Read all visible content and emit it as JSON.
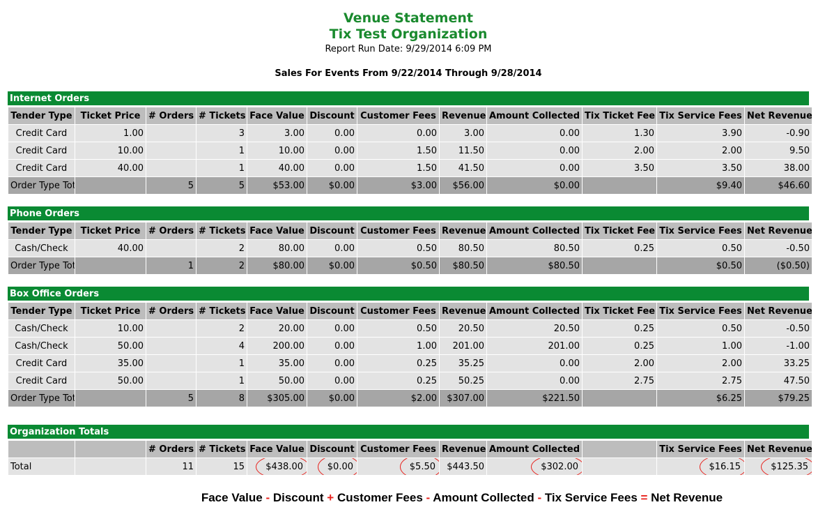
{
  "header": {
    "title": "Venue Statement",
    "organization": "Tix Test Organization",
    "run_date": "Report Run Date: 9/29/2014 6:09 PM",
    "range": "Sales For Events From 9/22/2014 Through 9/28/2014"
  },
  "columns": [
    "Tender Type",
    "Ticket Price",
    "# Orders",
    "# Tickets",
    "Face Value",
    "Discount",
    "Customer Fees",
    "Revenue",
    "Amount Collected",
    "Tix Ticket Fee",
    "Tix Service Fees",
    "Net Revenue"
  ],
  "sections": [
    {
      "title": "Internet Orders",
      "rows": [
        [
          "Credit Card",
          "1.00",
          "",
          "3",
          "3.00",
          "0.00",
          "0.00",
          "3.00",
          "0.00",
          "1.30",
          "3.90",
          "-0.90"
        ],
        [
          "Credit Card",
          "10.00",
          "",
          "1",
          "10.00",
          "0.00",
          "1.50",
          "11.50",
          "0.00",
          "2.00",
          "2.00",
          "9.50"
        ],
        [
          "Credit Card",
          "40.00",
          "",
          "1",
          "40.00",
          "0.00",
          "1.50",
          "41.50",
          "0.00",
          "3.50",
          "3.50",
          "38.00"
        ]
      ],
      "total": [
        "Order Type Total",
        "",
        "5",
        "5",
        "$53.00",
        "$0.00",
        "$3.00",
        "$56.00",
        "$0.00",
        "",
        "$9.40",
        "$46.60"
      ]
    },
    {
      "title": "Phone Orders",
      "rows": [
        [
          "Cash/Check",
          "40.00",
          "",
          "2",
          "80.00",
          "0.00",
          "0.50",
          "80.50",
          "80.50",
          "0.25",
          "0.50",
          "-0.50"
        ]
      ],
      "total": [
        "Order Type Total",
        "",
        "1",
        "2",
        "$80.00",
        "$0.00",
        "$0.50",
        "$80.50",
        "$80.50",
        "",
        "$0.50",
        "($0.50)"
      ]
    },
    {
      "title": "Box Office Orders",
      "rows": [
        [
          "Cash/Check",
          "10.00",
          "",
          "2",
          "20.00",
          "0.00",
          "0.50",
          "20.50",
          "20.50",
          "0.25",
          "0.50",
          "-0.50"
        ],
        [
          "Cash/Check",
          "50.00",
          "",
          "4",
          "200.00",
          "0.00",
          "1.00",
          "201.00",
          "201.00",
          "0.25",
          "1.00",
          "-1.00"
        ],
        [
          "Credit Card",
          "35.00",
          "",
          "1",
          "35.00",
          "0.00",
          "0.25",
          "35.25",
          "0.00",
          "2.00",
          "2.00",
          "33.25"
        ],
        [
          "Credit Card",
          "50.00",
          "",
          "1",
          "50.00",
          "0.00",
          "0.25",
          "50.25",
          "0.00",
          "2.75",
          "2.75",
          "47.50"
        ]
      ],
      "total": [
        "Order Type Total",
        "",
        "5",
        "8",
        "$305.00",
        "$0.00",
        "$2.00",
        "$307.00",
        "$221.50",
        "",
        "$6.25",
        "$79.25"
      ]
    }
  ],
  "org_totals": {
    "title": "Organization Totals",
    "columns": [
      "",
      "",
      "# Orders",
      "# Tickets",
      "Face Value",
      "Discount",
      "Customer Fees",
      "Revenue",
      "Amount Collected",
      "",
      "Tix Service Fees",
      "Net Revenue"
    ],
    "row": [
      "Total",
      "",
      "11",
      "15",
      "$438.00",
      "$0.00",
      "$5.50",
      "$443.50",
      "$302.00",
      "",
      "$16.15",
      "$125.35"
    ],
    "circled": [
      4,
      5,
      6,
      8,
      10,
      11
    ]
  },
  "formula": [
    {
      "text": "Face Value",
      "op": false
    },
    {
      "text": " - ",
      "op": true
    },
    {
      "text": "Discount",
      "op": false
    },
    {
      "text": " + ",
      "op": true
    },
    {
      "text": "Customer Fees",
      "op": false
    },
    {
      "text": " - ",
      "op": true
    },
    {
      "text": "Amount Collected",
      "op": false
    },
    {
      "text": " - ",
      "op": true
    },
    {
      "text": "Tix Service Fees",
      "op": false
    },
    {
      "text": " = ",
      "op": true
    },
    {
      "text": "Net Revenue",
      "op": false
    }
  ],
  "colors": {
    "header_green": "#1a8a2e",
    "bar_green": "#0a8a33",
    "circle_red": "#e8211c"
  }
}
